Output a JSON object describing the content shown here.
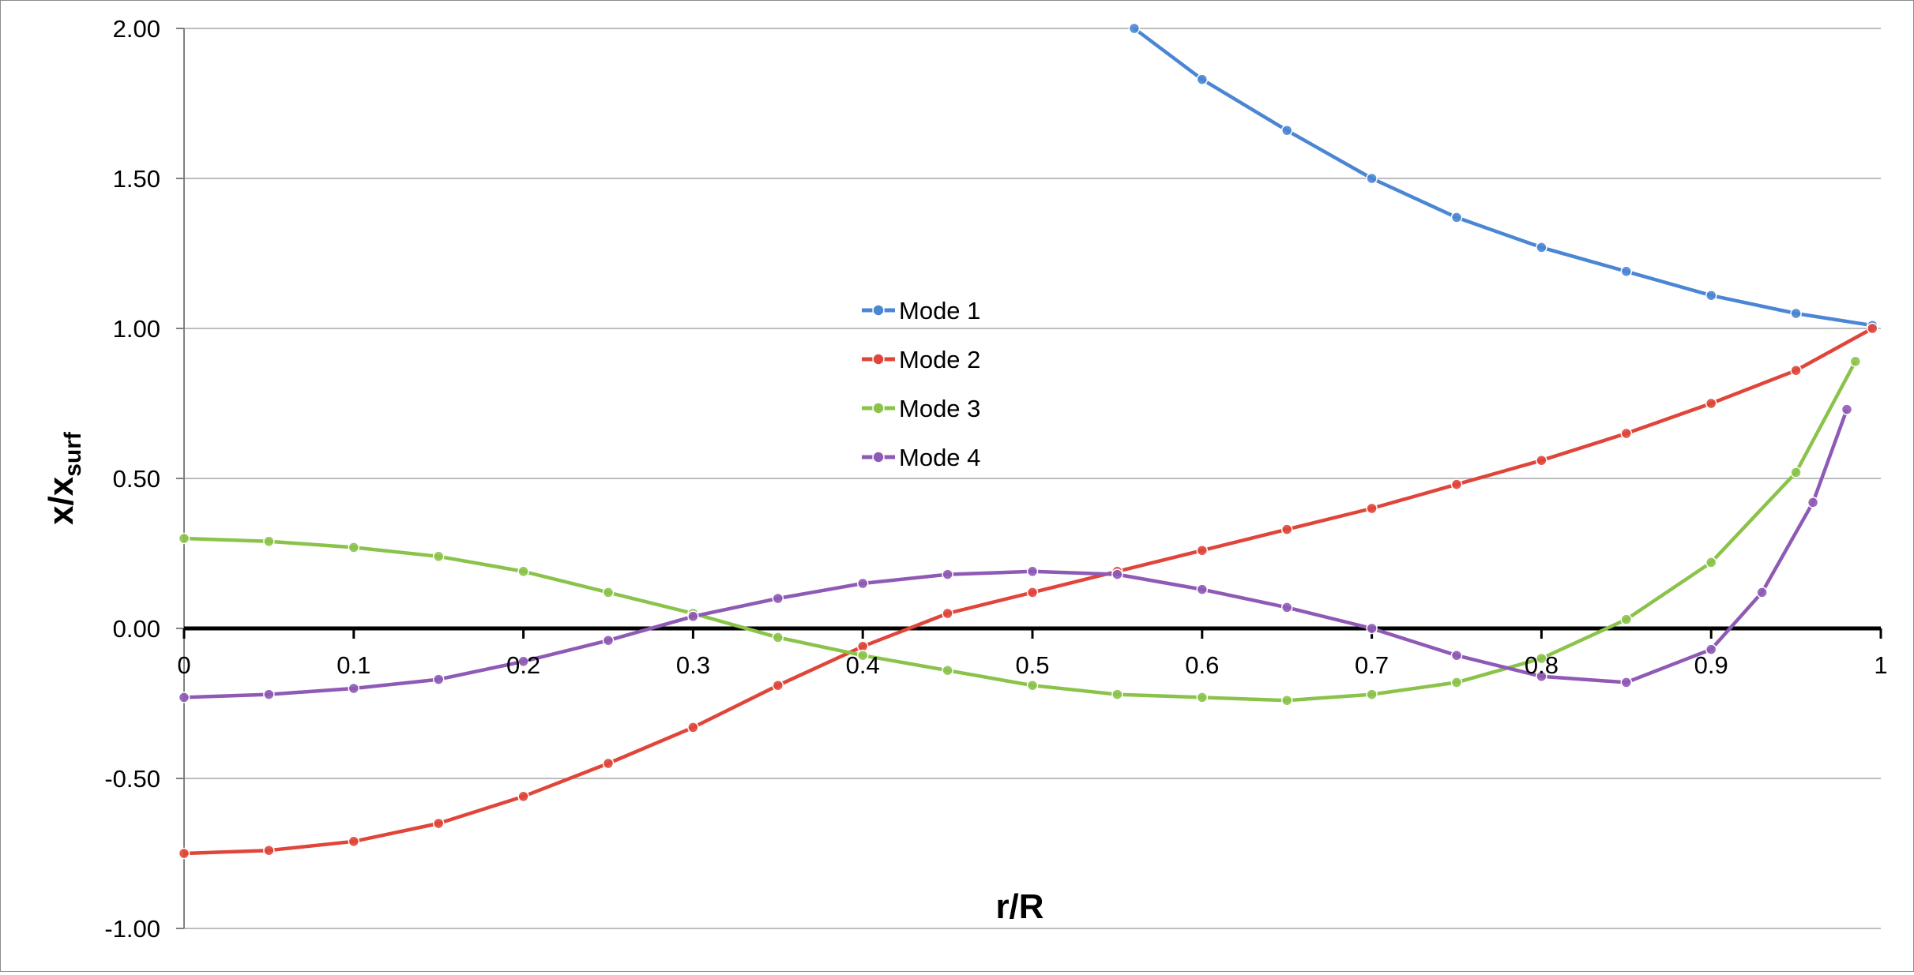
{
  "chart_data": {
    "type": "line",
    "title": "",
    "xlabel": "r/R",
    "ylabel": {
      "main": "x/x",
      "subscript": "surf"
    },
    "xlim": [
      0,
      1
    ],
    "ylim": [
      -1,
      2
    ],
    "xticks": [
      "0",
      "0.1",
      "0.2",
      "0.3",
      "0.4",
      "0.5",
      "0.6",
      "0.7",
      "0.8",
      "0.9",
      "1"
    ],
    "yticks": [
      "-1.00",
      "-0.50",
      "0.00",
      "0.50",
      "1.00",
      "1.50",
      "2.00"
    ],
    "grid": "horizontal",
    "legend_position": "center",
    "series": [
      {
        "name": "Mode 1",
        "color": "#4a86d4",
        "x": [
          0.56,
          0.6,
          0.65,
          0.7,
          0.75,
          0.8,
          0.85,
          0.9,
          0.95,
          0.995
        ],
        "y": [
          2.0,
          1.83,
          1.66,
          1.5,
          1.37,
          1.27,
          1.19,
          1.11,
          1.05,
          1.01
        ]
      },
      {
        "name": "Mode 2",
        "color": "#e0453a",
        "x": [
          0,
          0.05,
          0.1,
          0.15,
          0.2,
          0.25,
          0.3,
          0.35,
          0.4,
          0.45,
          0.5,
          0.55,
          0.6,
          0.65,
          0.7,
          0.75,
          0.8,
          0.85,
          0.9,
          0.95,
          0.995
        ],
        "y": [
          -0.75,
          -0.74,
          -0.71,
          -0.65,
          -0.56,
          -0.45,
          -0.33,
          -0.19,
          -0.06,
          0.05,
          0.12,
          0.19,
          0.26,
          0.33,
          0.4,
          0.48,
          0.56,
          0.65,
          0.75,
          0.86,
          1.0
        ]
      },
      {
        "name": "Mode 3",
        "color": "#8bc34a",
        "x": [
          0,
          0.05,
          0.1,
          0.15,
          0.2,
          0.25,
          0.3,
          0.35,
          0.4,
          0.45,
          0.5,
          0.55,
          0.6,
          0.65,
          0.7,
          0.75,
          0.8,
          0.85,
          0.9,
          0.95,
          0.985
        ],
        "y": [
          0.3,
          0.29,
          0.27,
          0.24,
          0.19,
          0.12,
          0.05,
          -0.03,
          -0.09,
          -0.14,
          -0.19,
          -0.22,
          -0.23,
          -0.24,
          -0.22,
          -0.18,
          -0.1,
          0.03,
          0.22,
          0.52,
          0.89
        ]
      },
      {
        "name": "Mode 4",
        "color": "#8e5ab5",
        "x": [
          0,
          0.05,
          0.1,
          0.15,
          0.2,
          0.25,
          0.3,
          0.35,
          0.4,
          0.45,
          0.5,
          0.55,
          0.6,
          0.65,
          0.7,
          0.75,
          0.8,
          0.85,
          0.9,
          0.93,
          0.96,
          0.98
        ],
        "y": [
          -0.23,
          -0.22,
          -0.2,
          -0.17,
          -0.11,
          -0.04,
          0.04,
          0.1,
          0.15,
          0.18,
          0.19,
          0.18,
          0.13,
          0.07,
          0.0,
          -0.09,
          -0.16,
          -0.18,
          -0.07,
          0.12,
          0.42,
          0.73
        ]
      }
    ]
  }
}
